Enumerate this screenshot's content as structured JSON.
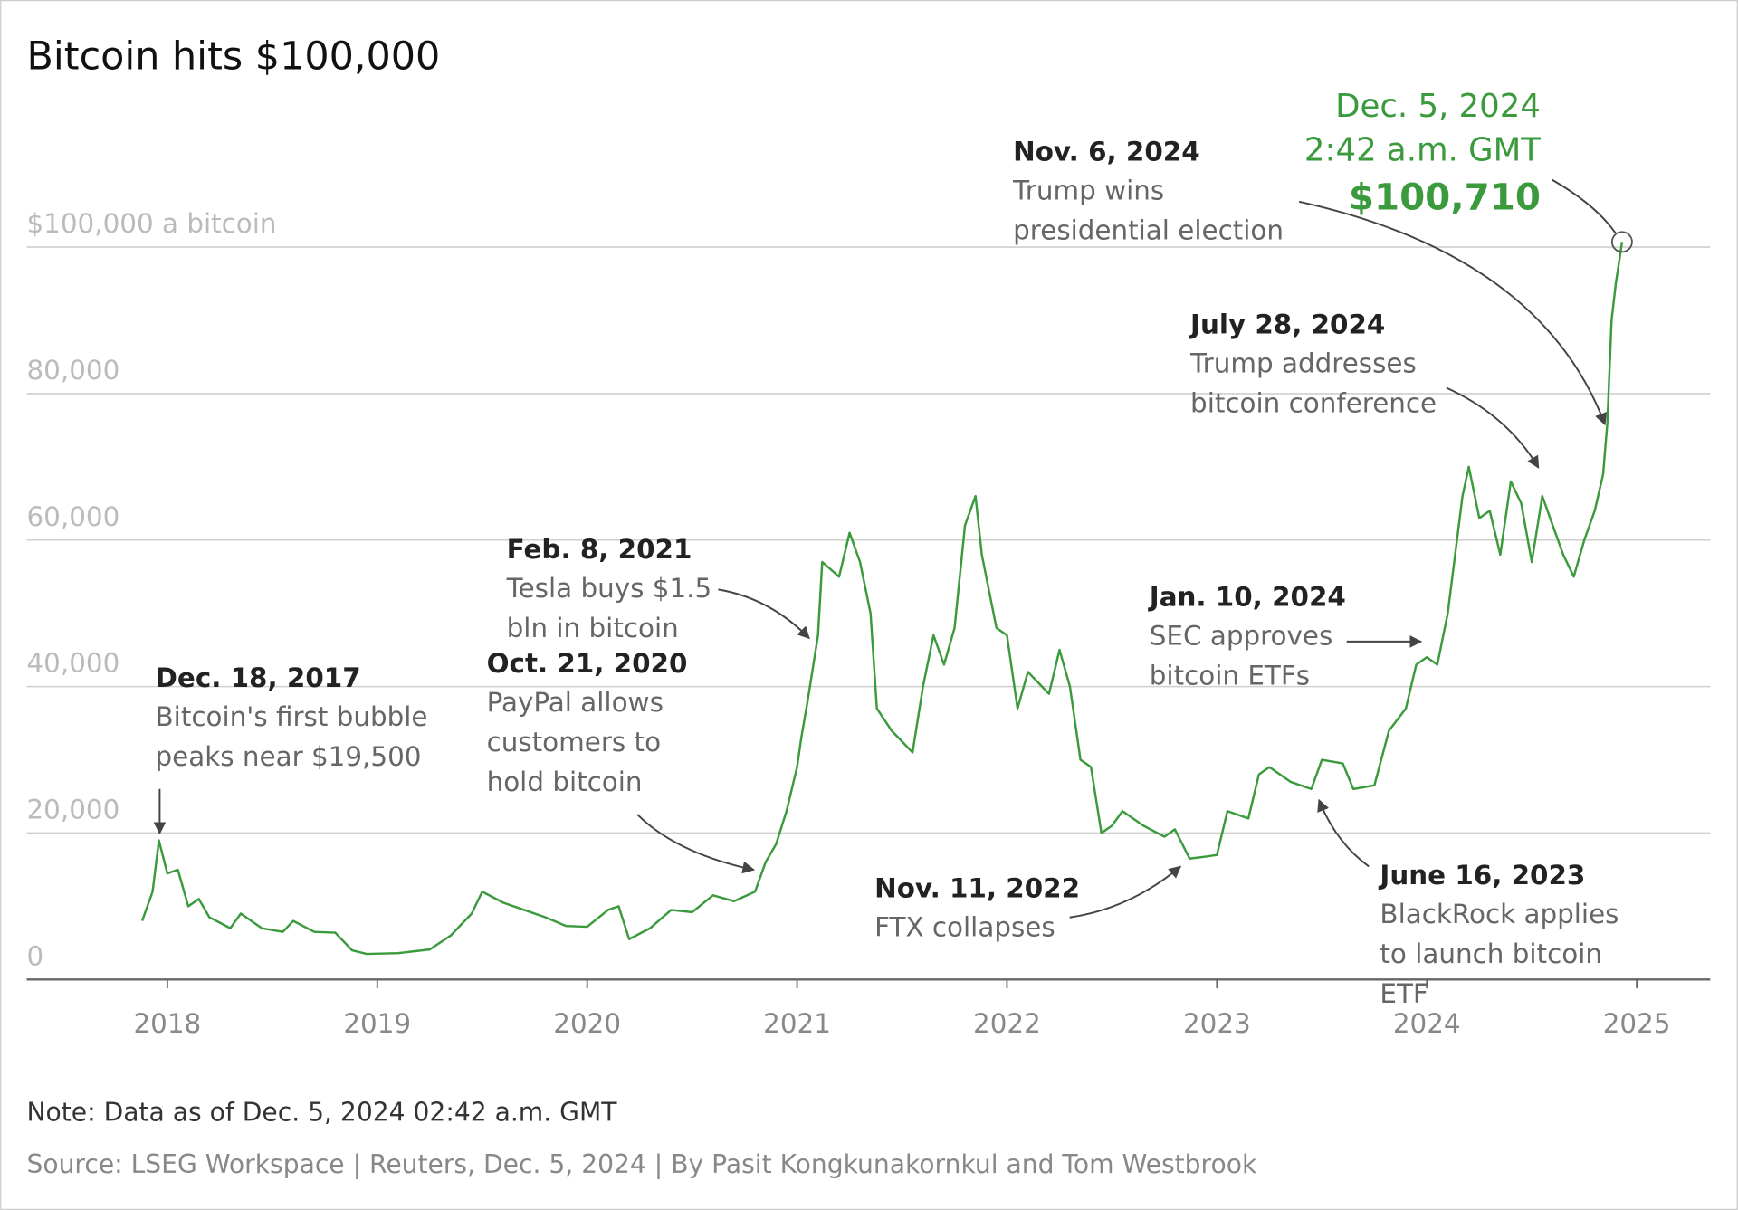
{
  "chart_data": {
    "type": "line",
    "title": "Bitcoin hits $100,000",
    "note": "Note: Data as of Dec. 5, 2024 02:42 a.m. GMT",
    "source": "Source: LSEG Workspace | Reuters, Dec. 5, 2024 | By Pasit Kongkunakornkul and Tom Westbrook",
    "color": "#3a9a3c",
    "grid": true,
    "xlim": [
      2017.33,
      2025.35
    ],
    "xticks": [
      2018,
      2019,
      2020,
      2021,
      2022,
      2023,
      2024,
      2025
    ],
    "ylim": [
      0,
      100000
    ],
    "yticks": [
      0,
      {
        "value": 20000,
        "label": "20,000"
      },
      {
        "value": 40000,
        "label": "40,000"
      },
      {
        "value": 60000,
        "label": "60,000"
      },
      {
        "value": 80000,
        "label": "80,000"
      },
      {
        "value": 100000,
        "label": "$100,000 a bitcoin"
      }
    ],
    "x": [
      2017.88,
      2017.93,
      2017.96,
      2018.0,
      2018.05,
      2018.1,
      2018.15,
      2018.2,
      2018.3,
      2018.35,
      2018.45,
      2018.55,
      2018.6,
      2018.7,
      2018.8,
      2018.88,
      2018.95,
      2019.1,
      2019.25,
      2019.35,
      2019.45,
      2019.5,
      2019.6,
      2019.7,
      2019.8,
      2019.9,
      2020.0,
      2020.1,
      2020.15,
      2020.2,
      2020.3,
      2020.4,
      2020.5,
      2020.6,
      2020.7,
      2020.8,
      2020.85,
      2020.9,
      2020.95,
      2021.0,
      2021.02,
      2021.05,
      2021.1,
      2021.12,
      2021.2,
      2021.25,
      2021.3,
      2021.35,
      2021.38,
      2021.45,
      2021.55,
      2021.6,
      2021.65,
      2021.7,
      2021.75,
      2021.8,
      2021.85,
      2021.88,
      2021.95,
      2022.0,
      2022.05,
      2022.1,
      2022.2,
      2022.25,
      2022.3,
      2022.35,
      2022.4,
      2022.45,
      2022.5,
      2022.55,
      2022.65,
      2022.75,
      2022.8,
      2022.87,
      2022.95,
      2023.0,
      2023.05,
      2023.15,
      2023.2,
      2023.25,
      2023.35,
      2023.45,
      2023.5,
      2023.6,
      2023.65,
      2023.75,
      2023.82,
      2023.9,
      2023.95,
      2024.0,
      2024.05,
      2024.1,
      2024.17,
      2024.2,
      2024.25,
      2024.3,
      2024.35,
      2024.4,
      2024.45,
      2024.5,
      2024.55,
      2024.6,
      2024.65,
      2024.7,
      2024.75,
      2024.8,
      2024.84,
      2024.86,
      2024.88,
      2024.9,
      2024.93
    ],
    "values": [
      8000,
      12000,
      19000,
      14500,
      15000,
      10000,
      11000,
      8500,
      7000,
      9000,
      7000,
      6500,
      8000,
      6500,
      6400,
      4000,
      3500,
      3600,
      4100,
      6000,
      9000,
      12000,
      10500,
      9500,
      8500,
      7300,
      7200,
      9500,
      10000,
      5500,
      7000,
      9500,
      9200,
      11500,
      10700,
      12000,
      16000,
      18500,
      23000,
      29000,
      33000,
      38000,
      47000,
      57000,
      55000,
      61000,
      57000,
      50000,
      37000,
      34000,
      31000,
      40000,
      47000,
      43000,
      48000,
      62000,
      66000,
      58000,
      48000,
      47000,
      37000,
      42000,
      39000,
      45000,
      40000,
      30000,
      29000,
      20000,
      21000,
      23000,
      21000,
      19500,
      20500,
      16500,
      16800,
      17000,
      23000,
      22000,
      28000,
      29000,
      27000,
      26000,
      30000,
      29500,
      26000,
      26500,
      34000,
      37000,
      43000,
      44000,
      43000,
      50000,
      66000,
      70000,
      63000,
      64000,
      58000,
      68000,
      65000,
      57000,
      66000,
      62000,
      58000,
      55000,
      60000,
      64000,
      69000,
      76000,
      90000,
      95000,
      100710
    ],
    "highlight": {
      "date": "Dec. 5, 2024",
      "time": "2:42 a.m. GMT",
      "value": 100710,
      "label": "$100,710"
    },
    "annotations": [
      {
        "date": "Dec. 18, 2017",
        "text": [
          "Bitcoin's first bubble",
          "peaks near $19,500"
        ]
      },
      {
        "date": "Oct. 21, 2020",
        "text": [
          "PayPal allows",
          "customers to",
          "hold bitcoin"
        ]
      },
      {
        "date": "Feb. 8, 2021",
        "text": [
          "Tesla buys $1.5",
          "bln in bitcoin"
        ]
      },
      {
        "date": "Nov. 11, 2022",
        "text": [
          "FTX collapses"
        ]
      },
      {
        "date": "June 16, 2023",
        "text": [
          "BlackRock applies",
          "to launch bitcoin",
          "ETF"
        ]
      },
      {
        "date": "Jan. 10, 2024",
        "text": [
          "SEC approves",
          "bitcoin ETFs"
        ]
      },
      {
        "date": "July 28, 2024",
        "text": [
          "Trump addresses",
          "bitcoin conference"
        ]
      },
      {
        "date": "Nov. 6, 2024",
        "text": [
          "Trump wins",
          "presidential election"
        ]
      }
    ]
  }
}
